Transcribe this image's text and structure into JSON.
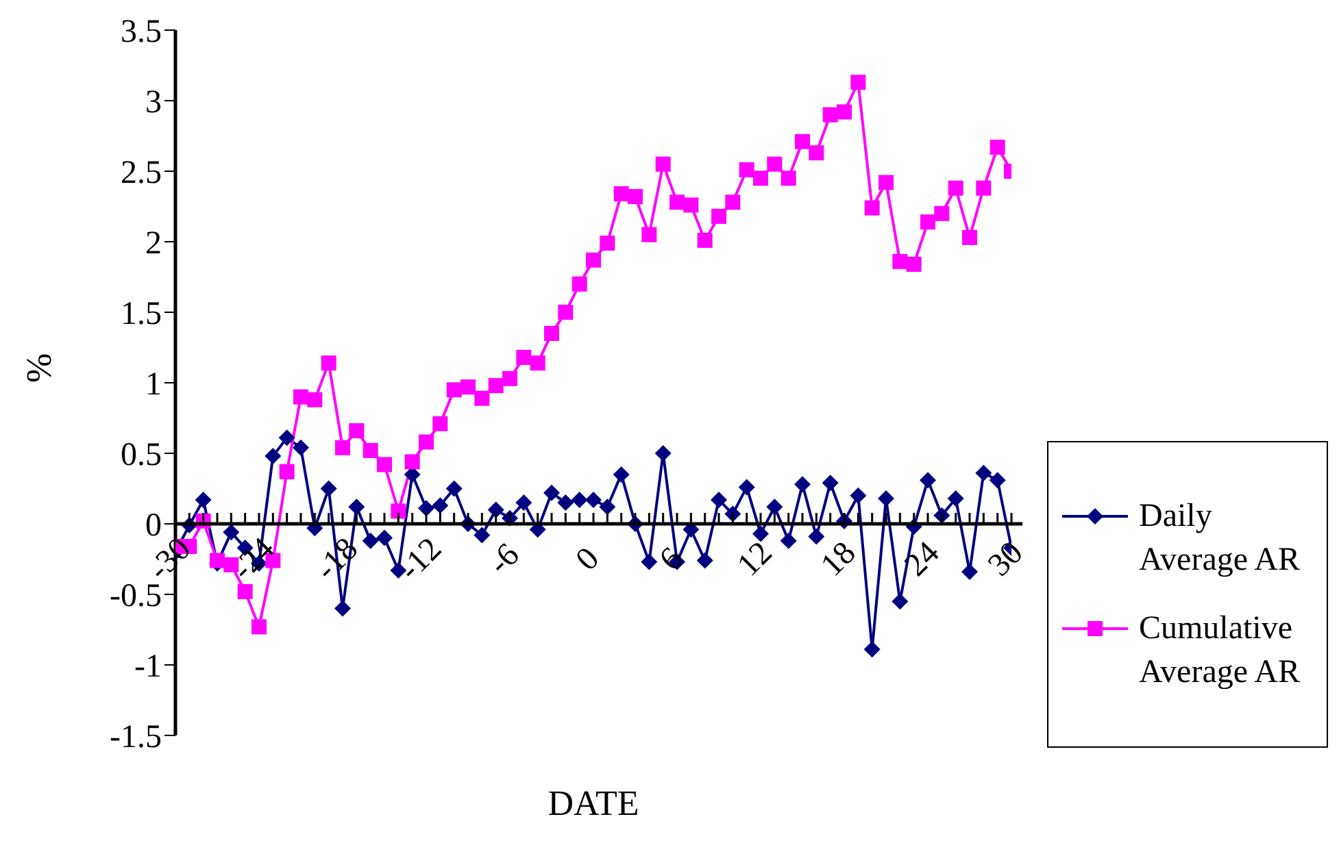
{
  "chart_data": {
    "type": "line",
    "xlabel": "DATE",
    "ylabel": "%",
    "categories": [
      "-30",
      null,
      null,
      null,
      null,
      null,
      "-24",
      null,
      null,
      null,
      null,
      null,
      "-18",
      null,
      null,
      null,
      null,
      null,
      "-12",
      null,
      null,
      null,
      null,
      null,
      "-6",
      null,
      null,
      null,
      null,
      null,
      "0",
      null,
      null,
      null,
      null,
      null,
      "6",
      null,
      null,
      null,
      null,
      null,
      "12",
      null,
      null,
      null,
      null,
      null,
      "18",
      null,
      null,
      null,
      null,
      null,
      "24",
      null,
      null,
      null,
      null,
      null,
      "30"
    ],
    "series": [
      {
        "name": "Daily Average AR",
        "color": "#000080",
        "marker": "diamond",
        "values": [
          -0.2,
          -0.01,
          0.17,
          -0.28,
          -0.06,
          -0.17,
          -0.28,
          0.48,
          0.61,
          0.54,
          -0.03,
          0.25,
          -0.6,
          0.12,
          -0.12,
          -0.1,
          -0.33,
          0.35,
          0.11,
          0.13,
          0.25,
          0.0,
          -0.08,
          0.1,
          0.04,
          0.15,
          -0.04,
          0.22,
          0.15,
          0.17,
          0.17,
          0.12,
          0.35,
          0.0,
          -0.27,
          0.5,
          -0.27,
          -0.04,
          -0.26,
          0.17,
          0.07,
          0.26,
          -0.07,
          0.12,
          -0.12,
          0.28,
          -0.09,
          0.29,
          0.02,
          0.2,
          -0.89,
          0.18,
          -0.55,
          -0.02,
          0.31,
          0.06,
          0.18,
          -0.34,
          0.36,
          0.31,
          -0.17
        ]
      },
      {
        "name": "Cumulative Average AR",
        "color": "#ff00ff",
        "marker": "square",
        "values": [
          -0.16,
          -0.16,
          0.02,
          -0.26,
          -0.29,
          -0.48,
          -0.73,
          -0.26,
          0.37,
          0.9,
          0.88,
          1.14,
          0.54,
          0.66,
          0.52,
          0.42,
          0.09,
          0.44,
          0.58,
          0.71,
          0.95,
          0.97,
          0.89,
          0.98,
          1.03,
          1.18,
          1.14,
          1.35,
          1.5,
          1.7,
          1.87,
          1.99,
          2.34,
          2.32,
          2.05,
          2.55,
          2.28,
          2.26,
          2.01,
          2.18,
          2.28,
          2.51,
          2.45,
          2.55,
          2.45,
          2.71,
          2.63,
          2.9,
          2.92,
          3.13,
          2.24,
          2.42,
          1.86,
          1.84,
          2.14,
          2.2,
          2.38,
          2.03,
          2.38,
          2.67,
          2.5
        ]
      }
    ],
    "ylim": [
      -1.5,
      3.5
    ],
    "yticks": [
      -1.5,
      -1,
      -0.5,
      0,
      0.5,
      1,
      1.5,
      2,
      2.5,
      3,
      3.5
    ],
    "legend": "right",
    "grid": false
  }
}
